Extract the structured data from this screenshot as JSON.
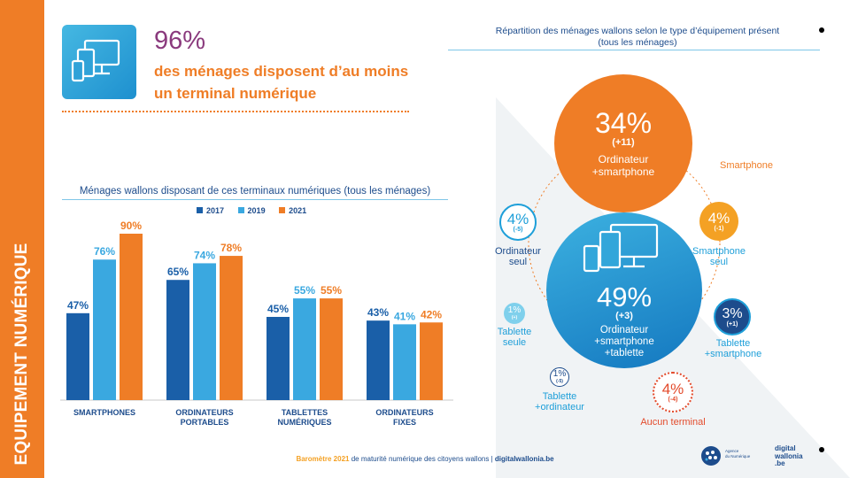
{
  "sidebar": {
    "label": "EQUIPEMENT NUMÉRIQUE"
  },
  "hero": {
    "percent": "96%",
    "description": "des ménages disposent d’au moins un terminal numérique"
  },
  "bar_chart_title": "Ménages wallons disposant de ces terminaux numériques (tous les ménages)",
  "right_title": {
    "line1": "Répartition des ménages wallons selon le type d’équipement présent",
    "line2": "(tous les ménages)"
  },
  "colors": {
    "y2017": "#1a5fa8",
    "y2019": "#3aa8e0",
    "y2021": "#ef7d26",
    "navy": "#1d4c8c",
    "orange": "#ef7d26"
  },
  "chart_data": {
    "type": "bar",
    "categories": [
      [
        "SMARTPHONES"
      ],
      [
        "ORDINATEURS",
        "PORTABLES"
      ],
      [
        "TABLETTES",
        "NUMÉRIQUES"
      ],
      [
        "ORDINATEURS",
        "FIXES"
      ]
    ],
    "series": [
      {
        "name": "2017",
        "values": [
          47,
          65,
          45,
          43
        ]
      },
      {
        "name": "2019",
        "values": [
          76,
          74,
          55,
          41
        ]
      },
      {
        "name": "2021",
        "values": [
          90,
          78,
          55,
          42
        ]
      }
    ],
    "value_suffix": "%",
    "ylim": [
      0,
      90
    ],
    "legend_position": "top",
    "grid": false
  },
  "bubbles": {
    "ordinateur_smartphone": {
      "percent": "34%",
      "change": "(+11)",
      "line1": "Ordinateur",
      "line2": "+smartphone"
    },
    "all_three": {
      "percent": "49%",
      "change": "(+3)",
      "line1": "Ordinateur",
      "line2": "+smartphone",
      "line3": "+tablette"
    },
    "ordinateur_seul": {
      "percent": "4%",
      "change": "(-5)",
      "line1": "Ordinateur",
      "line2": "seul"
    },
    "smartphone_seul": {
      "percent": "4%",
      "change": "(-1)",
      "line1": "Smartphone",
      "line2": "seul"
    },
    "tablette_smartphone": {
      "percent": "3%",
      "change": "(+1)",
      "line1": "Tablette",
      "line2": "+smartphone"
    },
    "tablette_seule": {
      "percent": "1%",
      "change": "(+)",
      "line1": "Tablette",
      "line2": "seule"
    },
    "tablette_ordinateur": {
      "percent": "1%",
      "change": "(-5)",
      "line1": "Tablette",
      "line2": "+ordinateur"
    },
    "aucun": {
      "percent": "4%",
      "change": "(-4)",
      "line1": "Aucun terminal"
    }
  },
  "smartphone_label": "Smartphone",
  "footer": {
    "part1": "Baromètre 2021",
    "part2": " de maturité numérique des citoyens wallons | ",
    "part3": "digitalwallonia.be"
  },
  "logos": {
    "agency_line1": "Agence",
    "agency_line2": "du Numérique",
    "dw_line1": "digital",
    "dw_line2": "wallonia",
    "dw_line3": ".be"
  }
}
